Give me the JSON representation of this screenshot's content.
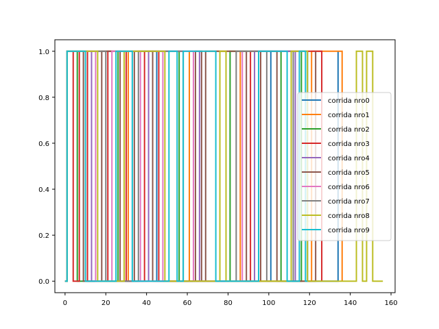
{
  "chart_data": {
    "type": "line",
    "xlim": [
      -5,
      162
    ],
    "ylim": [
      -0.05,
      1.05
    ],
    "x_ticks": [
      0,
      20,
      40,
      60,
      80,
      100,
      120,
      140,
      160
    ],
    "y_ticks": [
      0.0,
      0.2,
      0.4,
      0.6,
      0.8,
      1.0
    ],
    "x_tick_labels": [
      "0",
      "20",
      "40",
      "60",
      "80",
      "100",
      "120",
      "140",
      "160"
    ],
    "y_tick_labels": [
      "0.0",
      "0.2",
      "0.4",
      "0.6",
      "0.8",
      "1.0"
    ],
    "grid": false,
    "legend_position": "center-right",
    "series": [
      {
        "name": "corrida nro0",
        "color": "#1f77b4",
        "x": [
          0,
          1,
          44,
          45,
          100,
          101,
          118,
          119,
          133,
          134
        ],
        "y": [
          0,
          1,
          1,
          0,
          0,
          1,
          1,
          0,
          0,
          1
        ]
      },
      {
        "name": "corrida nro1",
        "color": "#ff7f0e",
        "x": [
          0,
          1,
          30,
          31,
          60,
          61,
          85,
          86,
          120,
          121,
          135,
          136
        ],
        "y": [
          0,
          1,
          1,
          0,
          0,
          1,
          1,
          0,
          0,
          1,
          1,
          0
        ]
      },
      {
        "name": "corrida nro2",
        "color": "#2ca02c",
        "x": [
          0,
          1,
          5,
          6,
          25,
          26,
          55,
          56,
          80,
          81,
          105,
          106,
          115,
          116
        ],
        "y": [
          0,
          1,
          1,
          0,
          0,
          1,
          1,
          0,
          0,
          1,
          1,
          0,
          0,
          1
        ]
      },
      {
        "name": "corrida nro3",
        "color": "#d62728",
        "x": [
          0,
          1,
          3,
          4,
          6,
          7,
          10,
          11,
          20,
          21,
          29,
          30,
          38,
          39,
          45,
          46,
          90,
          91,
          125,
          126
        ],
        "y": [
          0,
          1,
          1,
          0,
          0,
          1,
          1,
          0,
          0,
          1,
          1,
          0,
          0,
          1,
          1,
          0,
          0,
          1,
          1,
          0
        ]
      },
      {
        "name": "corrida nro4",
        "color": "#9467bd",
        "x": [
          0,
          1,
          12,
          13,
          40,
          41,
          65,
          66,
          92,
          93,
          112,
          113
        ],
        "y": [
          0,
          1,
          1,
          0,
          0,
          1,
          1,
          0,
          0,
          1,
          1,
          0
        ]
      },
      {
        "name": "corrida nro5",
        "color": "#8c564b",
        "x": [
          0,
          1,
          8,
          9,
          17,
          18,
          26,
          27,
          33,
          34,
          42,
          43,
          63,
          64,
          66,
          67,
          68,
          69,
          88,
          89,
          95,
          96,
          103,
          104,
          122,
          123
        ],
        "y": [
          0,
          1,
          1,
          0,
          0,
          1,
          1,
          0,
          0,
          1,
          1,
          0,
          0,
          1,
          1,
          0,
          0,
          1,
          1,
          0,
          0,
          1,
          1,
          0,
          0,
          1
        ]
      },
      {
        "name": "corrida nro6",
        "color": "#e377c2",
        "x": [
          0,
          1,
          14,
          15,
          22,
          23,
          36,
          37,
          47,
          48,
          62,
          63,
          86,
          87
        ],
        "y": [
          0,
          1,
          1,
          0,
          0,
          1,
          1,
          0,
          0,
          1,
          1,
          0,
          0,
          1
        ]
      },
      {
        "name": "corrida nro7",
        "color": "#7f7f7f",
        "x": [
          0,
          1,
          19,
          20,
          35,
          36,
          57,
          58,
          83,
          84,
          98,
          99,
          111,
          112
        ],
        "y": [
          0,
          1,
          1,
          0,
          0,
          1,
          1,
          0,
          0,
          1,
          1,
          0,
          0,
          1
        ]
      },
      {
        "name": "corrida nro8",
        "color": "#bcbd22",
        "x": [
          0,
          1,
          15,
          16,
          28,
          29,
          48,
          49,
          75,
          76,
          78,
          79,
          110,
          111,
          118,
          119,
          142,
          143,
          145,
          146,
          147,
          148,
          150,
          151,
          156
        ],
        "y": [
          0,
          1,
          1,
          0,
          0,
          1,
          1,
          0,
          0,
          1,
          1,
          0,
          0,
          1,
          1,
          0,
          0,
          1,
          1,
          0,
          0,
          1,
          1,
          0,
          0
        ]
      },
      {
        "name": "corrida nro9",
        "color": "#17becf",
        "x": [
          0,
          1,
          9,
          10,
          24,
          25,
          32,
          33,
          50,
          51,
          54,
          55,
          57,
          58,
          73,
          74,
          94,
          95,
          108,
          109,
          114,
          115,
          117,
          118,
          119
        ],
        "y": [
          0,
          1,
          1,
          0,
          0,
          1,
          1,
          0,
          0,
          1,
          1,
          0,
          0,
          1,
          1,
          0,
          0,
          1,
          1,
          0,
          0,
          1,
          1,
          0,
          0
        ]
      }
    ]
  }
}
